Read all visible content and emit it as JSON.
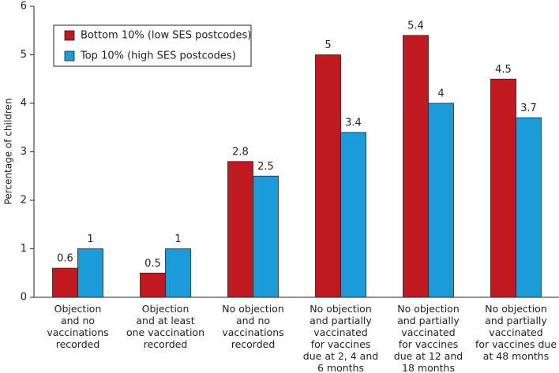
{
  "chart_data": {
    "type": "bar",
    "y_label": "Percentage of children",
    "categories": [
      "Objection\nand no\nvaccinations\nrecorded",
      "Objection\nand at least\none vaccination\nrecorded",
      "No objection\nand no\nvaccinations\nrecorded",
      "No objection\nand partially\nvaccinated\nfor vaccines\ndue at 2, 4 and\n6 months",
      "No objection\nand partially\nvaccinated\nfor vaccines\ndue at 12 and\n18 months",
      "No objection\nand partially\nvaccinated\nfor vaccines due\nat 48 months"
    ],
    "series": [
      {
        "name": "Bottom 10% (low SES postcodes)",
        "color": "#c0191f",
        "values": [
          0.6,
          0.5,
          2.8,
          5,
          5.4,
          4.5
        ]
      },
      {
        "name": "Top 10% (high SES postcodes)",
        "color": "#1b9bd7",
        "values": [
          1,
          1,
          2.5,
          3.4,
          4,
          3.7
        ]
      }
    ],
    "ylim": [
      0,
      6
    ],
    "yticks": [
      0,
      1,
      2,
      3,
      4,
      5,
      6
    ],
    "legend": "upper left"
  }
}
